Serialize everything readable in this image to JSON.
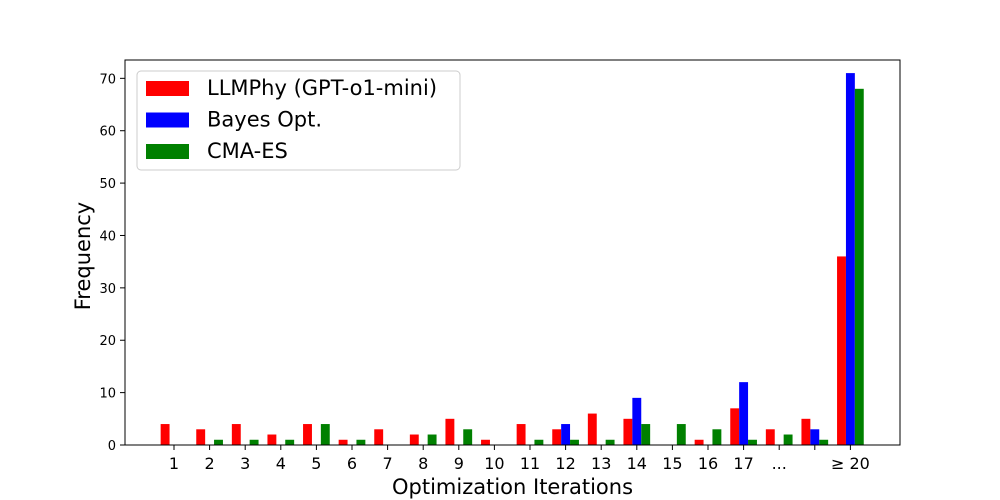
{
  "chart_data": {
    "type": "bar",
    "title": "",
    "xlabel": "Optimization Iterations",
    "ylabel": "Frequency",
    "ylim": [
      0,
      73.5
    ],
    "yticks": [
      0,
      10,
      20,
      30,
      40,
      50,
      60,
      70
    ],
    "grid": false,
    "legend_position": "top-left",
    "categories": [
      "1",
      "2",
      "3",
      "4",
      "5",
      "6",
      "7",
      "8",
      "9",
      "10",
      "11",
      "12",
      "13",
      "14",
      "15",
      "16",
      "17",
      "...",
      "",
      "≥ 20"
    ],
    "series": [
      {
        "name": "LLMPhy (GPT-o1-mini)",
        "color": "#ff0000",
        "values": [
          4,
          3,
          4,
          2,
          4,
          1,
          3,
          2,
          5,
          1,
          4,
          3,
          6,
          5,
          0,
          1,
          7,
          3,
          5,
          36
        ]
      },
      {
        "name": "Bayes Opt.",
        "color": "#0000ff",
        "values": [
          0,
          0,
          0,
          0,
          0,
          0,
          0,
          0,
          0,
          0,
          0,
          4,
          0,
          9,
          0,
          0,
          12,
          0,
          3,
          71
        ]
      },
      {
        "name": "CMA-ES",
        "color": "#008000",
        "values": [
          0,
          1,
          1,
          1,
          4,
          1,
          0,
          2,
          3,
          0,
          1,
          1,
          1,
          4,
          4,
          3,
          1,
          2,
          1,
          68
        ]
      }
    ]
  }
}
